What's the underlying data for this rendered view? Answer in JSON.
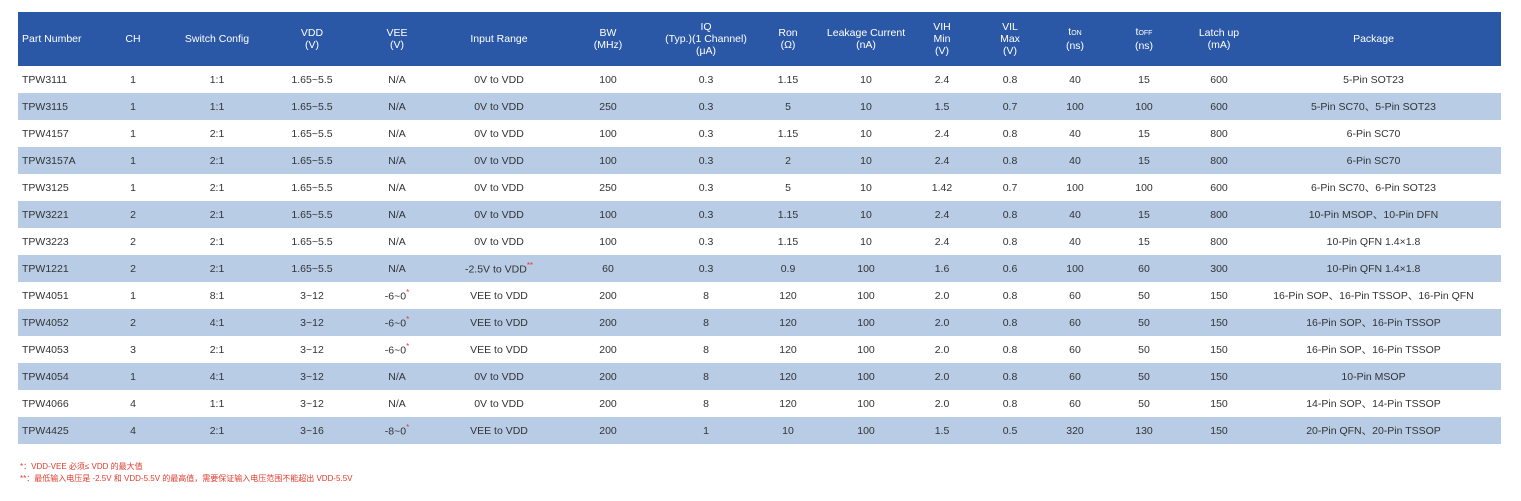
{
  "table": {
    "headers": [
      {
        "lines": [
          "Part Number"
        ]
      },
      {
        "lines": [
          "CH"
        ]
      },
      {
        "lines": [
          "Switch Config"
        ]
      },
      {
        "lines": [
          "VDD",
          "(V)"
        ]
      },
      {
        "lines": [
          "VEE",
          "(V)"
        ]
      },
      {
        "lines": [
          "Input Range"
        ]
      },
      {
        "lines": [
          "BW",
          "(MHz)"
        ]
      },
      {
        "lines": [
          "IQ",
          "(Typ.)(1 Channel)",
          "(μA)"
        ]
      },
      {
        "lines": [
          "Ron",
          "(Ω)"
        ]
      },
      {
        "lines": [
          "Leakage Current",
          "(nA)"
        ]
      },
      {
        "lines": [
          "VIH",
          "Min",
          "(V)"
        ]
      },
      {
        "lines": [
          "VIL",
          "Max",
          "(V)"
        ]
      },
      {
        "base": "t",
        "sub": "ON",
        "unit": "(ns)"
      },
      {
        "base": "t",
        "sub": "OFF",
        "unit": "(ns)"
      },
      {
        "lines": [
          "Latch up",
          "(mA)"
        ]
      },
      {
        "lines": [
          "Package"
        ]
      }
    ],
    "rows": [
      {
        "cells": [
          "TPW3111",
          "1",
          "1:1",
          "1.65~5.5",
          "N/A",
          "0V to VDD",
          "100",
          "0.3",
          "1.15",
          "10",
          "2.4",
          "0.8",
          "40",
          "15",
          "600",
          "5-Pin SOT23"
        ],
        "vee_mark": "",
        "range_mark": ""
      },
      {
        "cells": [
          "TPW3115",
          "1",
          "1:1",
          "1.65~5.5",
          "N/A",
          "0V to VDD",
          "250",
          "0.3",
          "5",
          "10",
          "1.5",
          "0.7",
          "100",
          "100",
          "600",
          "5-Pin SC70、5-Pin SOT23"
        ],
        "vee_mark": "",
        "range_mark": ""
      },
      {
        "cells": [
          "TPW4157",
          "1",
          "2:1",
          "1.65~5.5",
          "N/A",
          "0V to VDD",
          "100",
          "0.3",
          "1.15",
          "10",
          "2.4",
          "0.8",
          "40",
          "15",
          "800",
          "6-Pin SC70"
        ],
        "vee_mark": "",
        "range_mark": ""
      },
      {
        "cells": [
          "TPW3157A",
          "1",
          "2:1",
          "1.65~5.5",
          "N/A",
          "0V to VDD",
          "100",
          "0.3",
          "2",
          "10",
          "2.4",
          "0.8",
          "40",
          "15",
          "800",
          "6-Pin SC70"
        ],
        "vee_mark": "",
        "range_mark": ""
      },
      {
        "cells": [
          "TPW3125",
          "1",
          "2:1",
          "1.65~5.5",
          "N/A",
          "0V to VDD",
          "250",
          "0.3",
          "5",
          "10",
          "1.42",
          "0.7",
          "100",
          "100",
          "600",
          "6-Pin SC70、6-Pin SOT23"
        ],
        "vee_mark": "",
        "range_mark": ""
      },
      {
        "cells": [
          "TPW3221",
          "2",
          "2:1",
          "1.65~5.5",
          "N/A",
          "0V to VDD",
          "100",
          "0.3",
          "1.15",
          "10",
          "2.4",
          "0.8",
          "40",
          "15",
          "800",
          "10-Pin MSOP、10-Pin DFN"
        ],
        "vee_mark": "",
        "range_mark": ""
      },
      {
        "cells": [
          "TPW3223",
          "2",
          "2:1",
          "1.65~5.5",
          "N/A",
          "0V to VDD",
          "100",
          "0.3",
          "1.15",
          "10",
          "2.4",
          "0.8",
          "40",
          "15",
          "800",
          "10-Pin QFN 1.4×1.8"
        ],
        "vee_mark": "",
        "range_mark": ""
      },
      {
        "cells": [
          "TPW1221",
          "2",
          "2:1",
          "1.65~5.5",
          "N/A",
          "-2.5V to VDD",
          "60",
          "0.3",
          "0.9",
          "100",
          "1.6",
          "0.6",
          "100",
          "60",
          "300",
          "10-Pin QFN 1.4×1.8"
        ],
        "vee_mark": "",
        "range_mark": "**"
      },
      {
        "cells": [
          "TPW4051",
          "1",
          "8:1",
          "3~12",
          "-6~0",
          "VEE to VDD",
          "200",
          "8",
          "120",
          "100",
          "2.0",
          "0.8",
          "60",
          "50",
          "150",
          "16-Pin SOP、16-Pin TSSOP、16-Pin QFN"
        ],
        "vee_mark": "*",
        "range_mark": ""
      },
      {
        "cells": [
          "TPW4052",
          "2",
          "4:1",
          "3~12",
          "-6~0",
          "VEE to VDD",
          "200",
          "8",
          "120",
          "100",
          "2.0",
          "0.8",
          "60",
          "50",
          "150",
          "16-Pin SOP、16-Pin TSSOP"
        ],
        "vee_mark": "*",
        "range_mark": ""
      },
      {
        "cells": [
          "TPW4053",
          "3",
          "2:1",
          "3~12",
          "-6~0",
          "VEE to VDD",
          "200",
          "8",
          "120",
          "100",
          "2.0",
          "0.8",
          "60",
          "50",
          "150",
          "16-Pin SOP、16-Pin TSSOP"
        ],
        "vee_mark": "*",
        "range_mark": ""
      },
      {
        "cells": [
          "TPW4054",
          "1",
          "4:1",
          "3~12",
          "N/A",
          "0V to VDD",
          "200",
          "8",
          "120",
          "100",
          "2.0",
          "0.8",
          "60",
          "50",
          "150",
          "10-Pin MSOP"
        ],
        "vee_mark": "",
        "range_mark": ""
      },
      {
        "cells": [
          "TPW4066",
          "4",
          "1:1",
          "3~12",
          "N/A",
          "0V to VDD",
          "200",
          "8",
          "120",
          "100",
          "2.0",
          "0.8",
          "60",
          "50",
          "150",
          "14-Pin SOP、14-Pin TSSOP"
        ],
        "vee_mark": "",
        "range_mark": ""
      },
      {
        "cells": [
          "TPW4425",
          "4",
          "2:1",
          "3~16",
          "-8~0",
          "VEE to VDD",
          "200",
          "1",
          "10",
          "100",
          "1.5",
          "0.5",
          "320",
          "130",
          "150",
          "20-Pin QFN、20-Pin TSSOP"
        ],
        "vee_mark": "*",
        "range_mark": ""
      }
    ]
  },
  "notes": [
    "*：VDD-VEE 必须≤ VDD 的最大值",
    "**：最低输入电压是 -2.5V 和 VDD-5.5V 的最高值，需要保证输入电压范围不能超出 VDD-5.5V"
  ],
  "colors": {
    "header_bg": "#2b58a6",
    "alt_row_bg": "#b8cce6",
    "note_red": "#e23b2e"
  }
}
